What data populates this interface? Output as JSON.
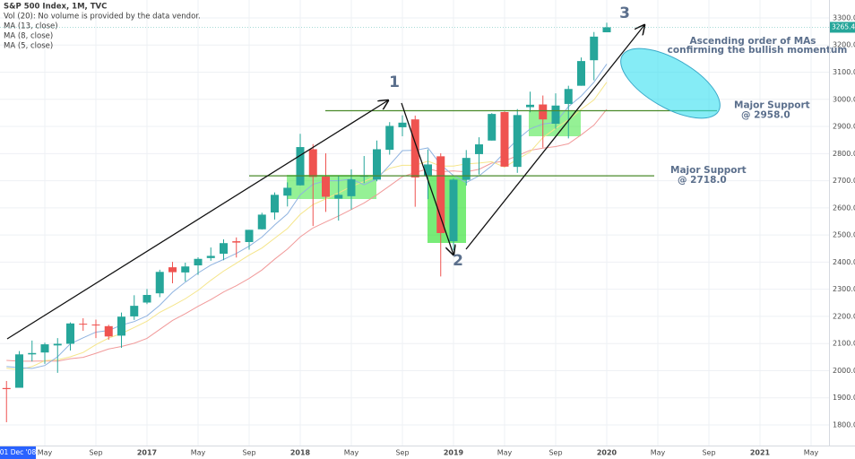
{
  "chart_data": {
    "type": "candlestick",
    "title": "S&P 500 Index, 1M, TVC",
    "subtitle": "Vol (20): No volume is provided by the data vendor.",
    "cursor_label": "01 Dec '08",
    "open": [
      1936,
      1937,
      2060,
      2067,
      2093,
      2099,
      2173,
      2170,
      2164,
      2129,
      2200,
      2251,
      2285,
      2381,
      2362,
      2388,
      2415,
      2431,
      2477,
      2474,
      2521,
      2583,
      2645,
      2683,
      2816,
      2715,
      2634,
      2643,
      2718,
      2704,
      2814,
      2897,
      2926,
      2718,
      2790,
      2477,
      2703,
      2798,
      2848,
      2953,
      2751,
      2971,
      2981,
      2910,
      2983,
      3050,
      3144,
      3247
    ],
    "high": [
      1962,
      2072,
      2111,
      2103,
      2120,
      2178,
      2193,
      2188,
      2169,
      2214,
      2278,
      2301,
      2372,
      2401,
      2398,
      2418,
      2454,
      2484,
      2491,
      2519,
      2582,
      2657,
      2694,
      2873,
      2835,
      2801,
      2718,
      2742,
      2791,
      2848,
      2916,
      2941,
      2940,
      2815,
      2801,
      2708,
      2813,
      2860,
      2949,
      2955,
      2964,
      3028,
      3014,
      3022,
      3050,
      3154,
      3248,
      3282
    ],
    "low": [
      1810,
      1937,
      2034,
      2025,
      1992,
      2074,
      2147,
      2120,
      2114,
      2084,
      2187,
      2245,
      2271,
      2322,
      2329,
      2353,
      2405,
      2407,
      2417,
      2446,
      2520,
      2557,
      2605,
      2682,
      2533,
      2585,
      2553,
      2594,
      2691,
      2698,
      2796,
      2864,
      2604,
      2632,
      2347,
      2444,
      2682,
      2723,
      2848,
      2751,
      2729,
      2952,
      2822,
      2891,
      2856,
      3050,
      3070,
      3247
    ],
    "close": [
      1932,
      2060,
      2065,
      2097,
      2099,
      2174,
      2171,
      2168,
      2126,
      2199,
      2239,
      2279,
      2364,
      2363,
      2384,
      2412,
      2423,
      2470,
      2472,
      2519,
      2575,
      2648,
      2674,
      2824,
      2714,
      2641,
      2648,
      2705,
      2718,
      2816,
      2902,
      2914,
      2712,
      2760,
      2507,
      2704,
      2784,
      2834,
      2946,
      2752,
      2942,
      2980,
      2926,
      2977,
      3038,
      3141,
      3231,
      3265.4
    ],
    "up_color": "#26a69a",
    "down_color": "#ef5350",
    "series": [
      {
        "name": "MA (13, close)",
        "color": "#f19a9a",
        "values": [
          2038,
          2035,
          2035,
          2036,
          2035,
          2044,
          2049,
          2064,
          2080,
          2089,
          2101,
          2119,
          2152,
          2185,
          2210,
          2237,
          2262,
          2290,
          2313,
          2340,
          2371,
          2411,
          2448,
          2493,
          2526,
          2548,
          2570,
          2594,
          2618,
          2648,
          2681,
          2715,
          2730,
          2744,
          2733,
          2736,
          2733,
          2742,
          2765,
          2773,
          2792,
          2812,
          2820,
          2826,
          2836,
          2869,
          2905,
          2963
        ]
      },
      {
        "name": "MA (8, close)",
        "color": "#f5e58a",
        "values": [
          2009,
          2003,
          2015,
          2037,
          2040,
          2051,
          2067,
          2096,
          2120,
          2137,
          2159,
          2182,
          2215,
          2239,
          2265,
          2296,
          2333,
          2367,
          2396,
          2426,
          2452,
          2488,
          2524,
          2576,
          2612,
          2633,
          2655,
          2679,
          2697,
          2718,
          2746,
          2757,
          2757,
          2772,
          2754,
          2754,
          2762,
          2765,
          2770,
          2750,
          2779,
          2806,
          2859,
          2893,
          2924,
          2963,
          2998,
          3063
        ]
      },
      {
        "name": "MA (5, close)",
        "color": "#8fb3e0",
        "values": [
          2015,
          2011,
          2008,
          2019,
          2051,
          2099,
          2121,
          2142,
          2148,
          2168,
          2181,
          2202,
          2241,
          2289,
          2326,
          2360,
          2389,
          2410,
          2432,
          2459,
          2492,
          2537,
          2578,
          2648,
          2687,
          2700,
          2700,
          2706,
          2685,
          2706,
          2758,
          2811,
          2812,
          2821,
          2759,
          2719,
          2693,
          2718,
          2755,
          2804,
          2852,
          2891,
          2909,
          2915,
          2973,
          3012,
          3063,
          3130
        ]
      }
    ],
    "last_price": 3265.4,
    "ylim": [
      1724,
      3366
    ],
    "yticks": [
      {
        "value": 1800,
        "label": "1800.0"
      },
      {
        "value": 1900,
        "label": "1900.0"
      },
      {
        "value": 2000,
        "label": "2000.0"
      },
      {
        "value": 2100,
        "label": "2100.0"
      },
      {
        "value": 2200,
        "label": "2200.0"
      },
      {
        "value": 2300,
        "label": "2300.0"
      },
      {
        "value": 2400,
        "label": "2400.0"
      },
      {
        "value": 2500,
        "label": "2500.0"
      },
      {
        "value": 2600,
        "label": "2600.0"
      },
      {
        "value": 2700,
        "label": "2700.0"
      },
      {
        "value": 2800,
        "label": "2800.0"
      },
      {
        "value": 2900,
        "label": "2900.0"
      },
      {
        "value": 3000,
        "label": "3000.0"
      },
      {
        "value": 3100,
        "label": "3100.0"
      },
      {
        "value": 3200,
        "label": "3200.0"
      },
      {
        "value": 3300,
        "label": "3300.0"
      }
    ],
    "xticks": [
      {
        "value": 3,
        "label": "May"
      },
      {
        "value": 7,
        "label": "Sep"
      },
      {
        "value": 11,
        "label": "2017"
      },
      {
        "value": 15,
        "label": "May"
      },
      {
        "value": 19,
        "label": "Sep"
      },
      {
        "value": 23,
        "label": "2018"
      },
      {
        "value": 27,
        "label": "May"
      },
      {
        "value": 31,
        "label": "Sep"
      },
      {
        "value": 35,
        "label": "2019"
      },
      {
        "value": 39,
        "label": "May"
      },
      {
        "value": 43,
        "label": "Sep"
      },
      {
        "value": 47,
        "label": "2020"
      },
      {
        "value": 51,
        "label": "May"
      },
      {
        "value": 55,
        "label": "Sep"
      },
      {
        "value": 59,
        "label": "2021"
      },
      {
        "value": 63,
        "label": "May"
      }
    ],
    "grid": true,
    "supports": [
      {
        "value": 2958,
        "label": [
          "Major Support",
          "@ 2958.0"
        ]
      },
      {
        "value": 2718,
        "label": [
          "Major Support",
          "@ 2718.0"
        ]
      }
    ],
    "wave_labels": [
      "1",
      "2",
      "3"
    ],
    "note": [
      "Ascending order of MAs",
      "confirming the bullish momentum"
    ]
  }
}
